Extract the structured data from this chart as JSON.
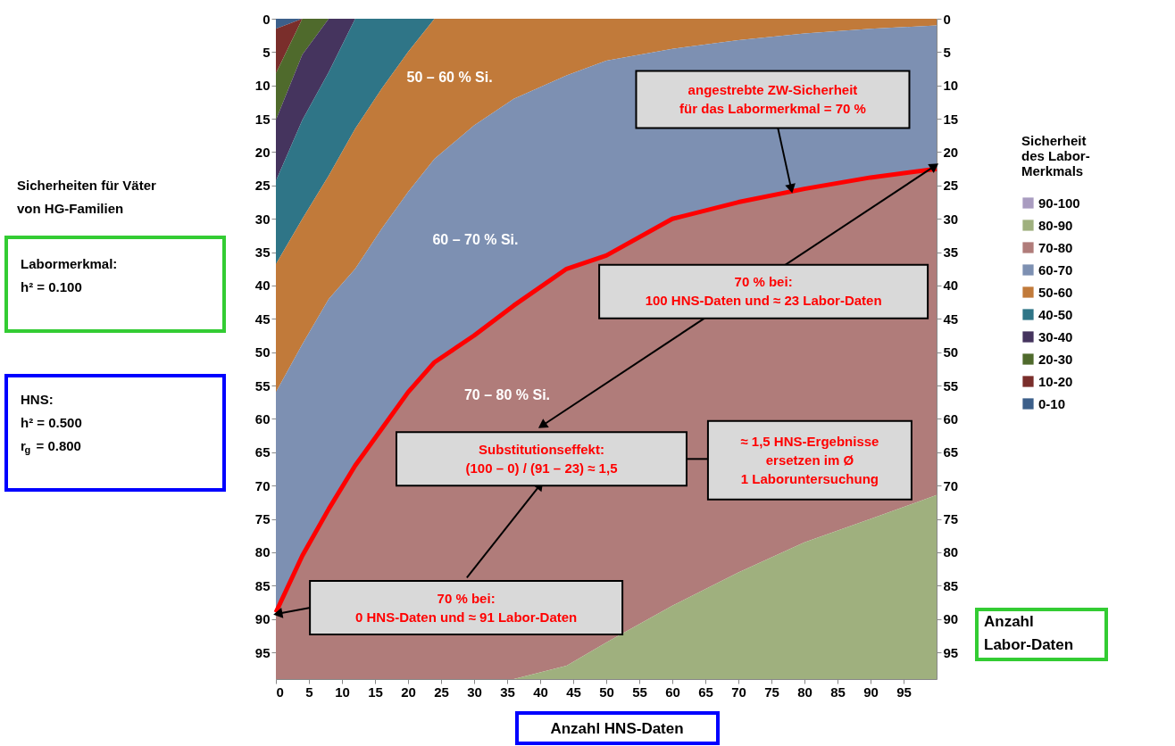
{
  "chart_data": {
    "type": "area",
    "stacked": true,
    "x": [
      0,
      4,
      8,
      12,
      16,
      20,
      24,
      30,
      36,
      44,
      50,
      60,
      70,
      80,
      90,
      100
    ],
    "xlim": [
      0,
      100
    ],
    "ylim": [
      99,
      0
    ],
    "y2lim": [
      99,
      0
    ],
    "xticks": [
      0,
      5,
      10,
      15,
      20,
      25,
      30,
      35,
      40,
      45,
      50,
      55,
      60,
      65,
      70,
      75,
      80,
      85,
      90,
      95
    ],
    "yticks": [
      0,
      5,
      10,
      15,
      20,
      25,
      30,
      35,
      40,
      45,
      50,
      55,
      60,
      65,
      70,
      75,
      80,
      85,
      90,
      95
    ],
    "y2ticks": [
      0,
      5,
      10,
      15,
      20,
      25,
      30,
      35,
      40,
      45,
      50,
      55,
      60,
      65,
      70,
      75,
      80,
      85,
      90,
      95
    ],
    "xlabel": "Anzahl HNS-Daten",
    "y2label": "Anzahl\nLabor-Daten",
    "legend_title": "Sicherheit\ndes Labor-\nMerkmals",
    "legend": "right",
    "grid": false,
    "series": [
      {
        "name": "0-10",
        "color": "#3c5f8a",
        "values": [
          1.5,
          0,
          0,
          0,
          0,
          0,
          0,
          0,
          0,
          0,
          0,
          0,
          0,
          0,
          0,
          0
        ]
      },
      {
        "name": "10-20",
        "color": "#7a2e2b",
        "values": [
          6.7,
          0,
          0,
          0,
          0,
          0,
          0,
          0,
          0,
          0,
          0,
          0,
          0,
          0,
          0,
          0
        ]
      },
      {
        "name": "20-30",
        "color": "#4f6a2c",
        "values": [
          7,
          5.4,
          0,
          0,
          0,
          0,
          0,
          0,
          0,
          0,
          0,
          0,
          0,
          0,
          0,
          0
        ]
      },
      {
        "name": "30-40",
        "color": "#45345e",
        "values": [
          9.1,
          9.8,
          8,
          0,
          0,
          0,
          0,
          0,
          0,
          0,
          0,
          0,
          0,
          0,
          0,
          0
        ]
      },
      {
        "name": "40-50",
        "color": "#2f7587",
        "values": [
          12.5,
          14.8,
          15.5,
          16.5,
          10.5,
          5,
          0,
          0,
          0,
          0,
          0,
          0,
          0,
          0,
          0,
          0
        ]
      },
      {
        "name": "50-60",
        "color": "#c17a3a",
        "values": [
          19.2,
          18.8,
          18.5,
          21,
          21,
          21,
          21,
          16,
          12,
          8.5,
          6.3,
          4.5,
          3.2,
          2.2,
          1.5,
          1
        ]
      },
      {
        "name": "60-70",
        "color": "#7d90b2",
        "values": [
          33,
          31.7,
          31.5,
          29.5,
          30,
          30,
          30.5,
          31.5,
          31,
          29,
          29.2,
          25.5,
          24.3,
          23.3,
          22.3,
          21.5
        ]
      },
      {
        "name": "70-80",
        "color": "#b07c7a",
        "values": [
          10,
          18.5,
          25.5,
          32,
          37.5,
          43,
          47.5,
          51.5,
          56,
          59.5,
          58,
          58,
          55.5,
          53,
          51.2,
          48.9
        ]
      },
      {
        "name": "80-90",
        "color": "#9fb07e",
        "values": [
          0,
          0,
          0,
          0,
          0,
          0,
          0,
          0,
          0,
          2,
          5.5,
          11,
          16,
          20.5,
          24,
          27.6
        ]
      },
      {
        "name": "90-100",
        "color": "#a99cc0",
        "values": [
          null,
          null,
          null,
          null,
          null,
          null,
          null,
          null,
          null,
          null,
          null,
          null,
          null,
          null,
          null,
          null
        ]
      },
      {
        "type": "line",
        "color": "#ff0000",
        "values": [
          89,
          80.5,
          73.5,
          67,
          61.5,
          56,
          51.5,
          47.5,
          43,
          37.5,
          35.5,
          30,
          27.5,
          25.5,
          23.8,
          22.5
        ]
      }
    ],
    "annotations": [
      "50 – 60 % Si.",
      "60 – 70 % Si.",
      "70 – 80 % Si.",
      {
        "text": "angestrebte ZW-Sicherheit\nfür das Labormerkmal = 70 %",
        "x": 78,
        "y": 25.5
      },
      "70 % bei:\n100 HNS-Daten und ≈ 23 Labor-Daten",
      "Substitutionseffekt:\n(100 – 0)  /  (91 – 23)  ≈  1,5",
      "≈ 1,5 HNS-Ergebnisse\nersetzen im Ø\n1 Laboruntersuchung",
      "70 % bei:\n0 HNS-Daten und ≈ 91 Labor-Daten",
      "Sicherheiten für Väter\nvon HG-Familien",
      "Labormerkmal:\nh² = 0.100",
      "HNS:\nh² = 0.500\nr$_{g}$ = 0.800"
    ]
  }
}
